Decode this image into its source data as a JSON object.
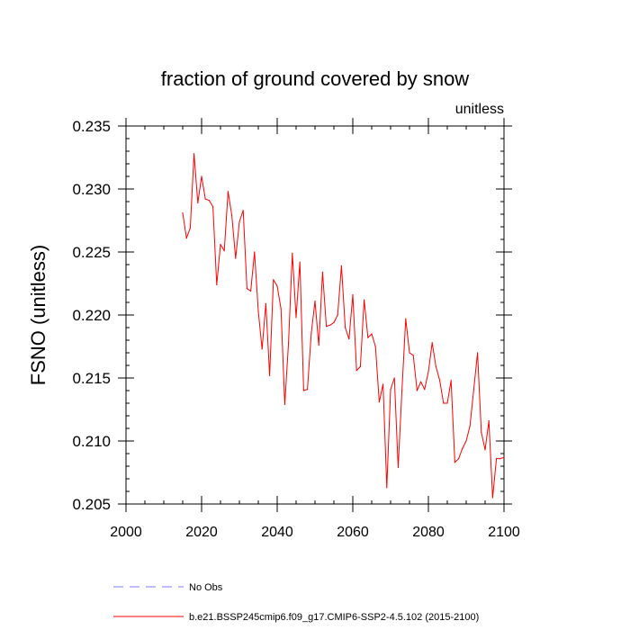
{
  "chart_data": {
    "type": "line",
    "title": "fraction of ground covered by snow",
    "units_label": "unitless",
    "ylabel": "FSNO  (unitless)",
    "xlabel": "",
    "xlim": [
      2000,
      2100
    ],
    "ylim": [
      0.205,
      0.235
    ],
    "x_ticks": [
      2000,
      2020,
      2040,
      2060,
      2080,
      2100
    ],
    "x_tick_labels": [
      "2000",
      "2020",
      "2040",
      "2060",
      "2080",
      "2100"
    ],
    "y_ticks": [
      0.205,
      0.21,
      0.215,
      0.22,
      0.225,
      0.23,
      0.235
    ],
    "y_tick_labels": [
      "0.205",
      "0.210",
      "0.215",
      "0.220",
      "0.225",
      "0.230",
      "0.235"
    ],
    "grid": false,
    "legend": [
      {
        "label": "No Obs",
        "color": "#7b7bff",
        "style": "dashed"
      },
      {
        "label": "b.e21.BSSP245cmip6.f09_g17.CMIP6-SSP2-4.5.102 (2015-2100)",
        "color": "#ff0000",
        "style": "solid"
      }
    ],
    "series": [
      {
        "name": "b.e21.BSSP245cmip6.f09_g17.CMIP6-SSP2-4.5.102 (2015-2100)",
        "color": "#ff0000",
        "x": [
          2015,
          2016,
          2017,
          2018,
          2019,
          2020,
          2021,
          2022,
          2023,
          2024,
          2025,
          2026,
          2027,
          2028,
          2029,
          2030,
          2031,
          2032,
          2033,
          2034,
          2035,
          2036,
          2037,
          2038,
          2039,
          2040,
          2041,
          2042,
          2043,
          2044,
          2045,
          2046,
          2047,
          2048,
          2049,
          2050,
          2051,
          2052,
          2053,
          2054,
          2055,
          2056,
          2057,
          2058,
          2059,
          2060,
          2061,
          2062,
          2063,
          2064,
          2065,
          2066,
          2067,
          2068,
          2069,
          2070,
          2071,
          2072,
          2073,
          2074,
          2075,
          2076,
          2077,
          2078,
          2079,
          2080,
          2081,
          2082,
          2083,
          2084,
          2085,
          2086,
          2087,
          2088,
          2089,
          2090,
          2091,
          2092,
          2093,
          2094,
          2095,
          2096,
          2097,
          2098,
          2099,
          2100
        ],
        "values": [
          0.2281,
          0.2261,
          0.2269,
          0.2328,
          0.2289,
          0.231,
          0.2292,
          0.2291,
          0.2286,
          0.2224,
          0.2256,
          0.2251,
          0.2298,
          0.2279,
          0.2245,
          0.2274,
          0.2283,
          0.2221,
          0.2219,
          0.225,
          0.2203,
          0.2173,
          0.2209,
          0.2152,
          0.2228,
          0.2223,
          0.2205,
          0.2129,
          0.2178,
          0.2249,
          0.2198,
          0.2242,
          0.214,
          0.2141,
          0.2185,
          0.2211,
          0.2176,
          0.2234,
          0.2191,
          0.2192,
          0.2194,
          0.22,
          0.2239,
          0.219,
          0.2181,
          0.2216,
          0.2156,
          0.2159,
          0.2212,
          0.2182,
          0.2185,
          0.2175,
          0.2131,
          0.2145,
          0.2063,
          0.2141,
          0.215,
          0.2079,
          0.214,
          0.2197,
          0.217,
          0.2168,
          0.214,
          0.2147,
          0.2141,
          0.2155,
          0.2178,
          0.2159,
          0.2148,
          0.213,
          0.213,
          0.2148,
          0.2083,
          0.2086,
          0.2094,
          0.21,
          0.2112,
          0.2141,
          0.217,
          0.2107,
          0.2093,
          0.2116,
          0.2055,
          0.2086,
          0.2086,
          0.2087
        ]
      }
    ]
  }
}
